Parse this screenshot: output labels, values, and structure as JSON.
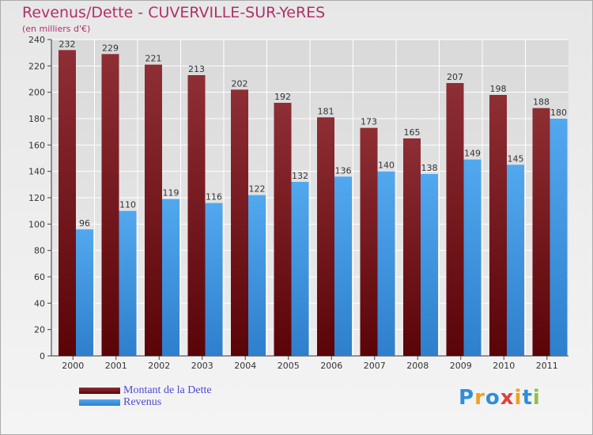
{
  "chart_data": {
    "type": "bar",
    "title": "Revenus/Dette - CUVERVILLE-SUR-YeRES",
    "subtitle": "(en milliers d'€)",
    "xlabel": "",
    "ylabel": "",
    "ylim": [
      0,
      240
    ],
    "yticks": [
      0,
      20,
      40,
      60,
      80,
      100,
      120,
      140,
      160,
      180,
      200,
      220,
      240
    ],
    "categories": [
      "2000",
      "2001",
      "2002",
      "2003",
      "2004",
      "2005",
      "2006",
      "2007",
      "2008",
      "2009",
      "2010",
      "2011"
    ],
    "series": [
      {
        "name": "Montant de la Dette",
        "color": "#7a1a1f",
        "values": [
          232,
          229,
          221,
          213,
          202,
          192,
          181,
          173,
          165,
          207,
          198,
          188
        ]
      },
      {
        "name": "Revenus",
        "color": "#3f9ae6",
        "values": [
          96,
          110,
          119,
          116,
          122,
          132,
          136,
          140,
          138,
          149,
          145,
          180
        ]
      }
    ],
    "grid": true,
    "legend": "bottom-left"
  },
  "brand": {
    "text": "Proxiti",
    "letters": [
      "P",
      "r",
      "o",
      "x",
      "i",
      "t",
      "i"
    ],
    "colors": [
      "#2e8fd8",
      "#f0a020",
      "#2e8fd8",
      "#e04040",
      "#f0a020",
      "#2e8fd8",
      "#8bc34a"
    ]
  }
}
